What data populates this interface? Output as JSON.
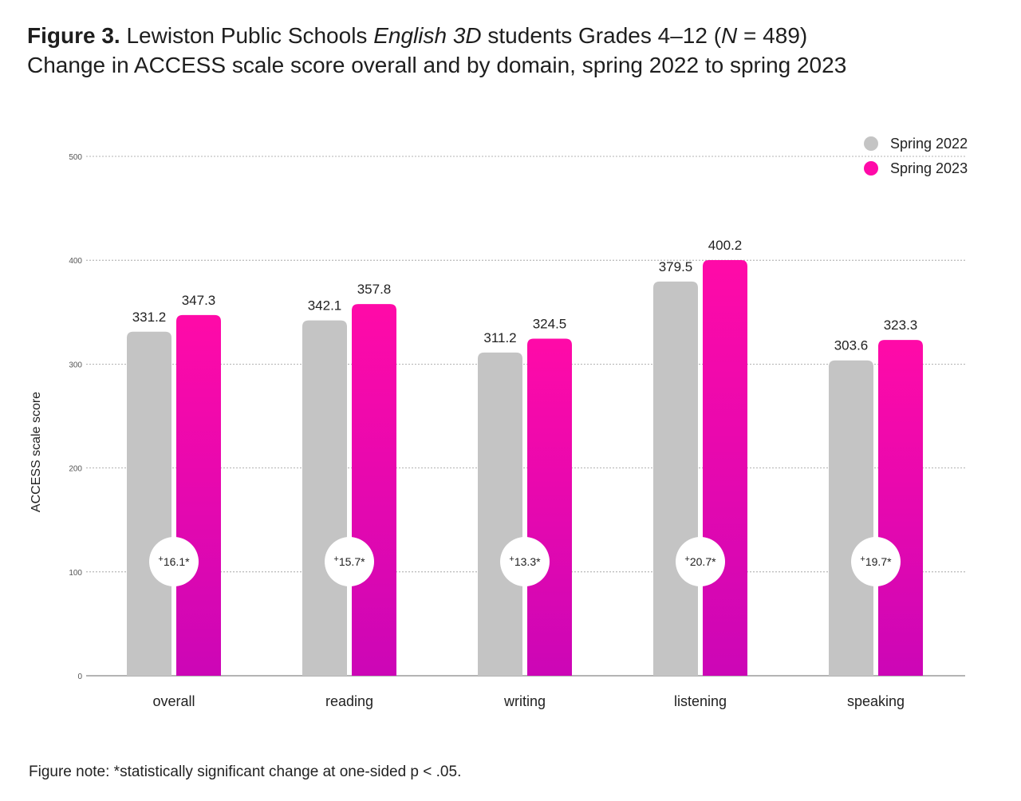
{
  "title": {
    "fig_label": "Figure 3.",
    "text_a": " Lewiston Public Schools ",
    "program": "English 3D",
    "text_b": " students Grades 4–12 (",
    "n_symbol": "N",
    "text_c": " = 489)",
    "subtitle": "Change in ACCESS scale score overall and by domain, spring 2022 to spring 2023"
  },
  "note": "Figure note: *statistically significant change at one-sided p < .05.",
  "colors": {
    "spring2022": "#c4c4c4",
    "spring2023_top": "#ff0aa8",
    "spring2023_bottom": "#cc06b6",
    "grid": "#9a9a9a",
    "axis": "#888888"
  },
  "chart_data": {
    "type": "bar",
    "ylabel": "ACCESS scale score",
    "xlabel": "",
    "ylim": [
      0,
      500
    ],
    "yticks": [
      0,
      100,
      200,
      300,
      400,
      500
    ],
    "grid": true,
    "legend_position": "top-right",
    "categories": [
      "overall",
      "reading",
      "writing",
      "listening",
      "speaking"
    ],
    "series": [
      {
        "name": "Spring 2022",
        "values": [
          331.2,
          342.1,
          311.2,
          379.5,
          303.6
        ],
        "labels": [
          "331.2",
          "342.1",
          "311.2",
          "379.5",
          "303.6"
        ]
      },
      {
        "name": "Spring 2023",
        "values": [
          347.3,
          357.8,
          324.5,
          400.2,
          323.3
        ],
        "labels": [
          "347.3",
          "357.8",
          "324.5",
          "400.2",
          "323.3"
        ]
      }
    ],
    "change_labels": [
      "16.1*",
      "15.7*",
      "13.3*",
      "20.7*",
      "19.7*"
    ],
    "change_sign": "+"
  }
}
